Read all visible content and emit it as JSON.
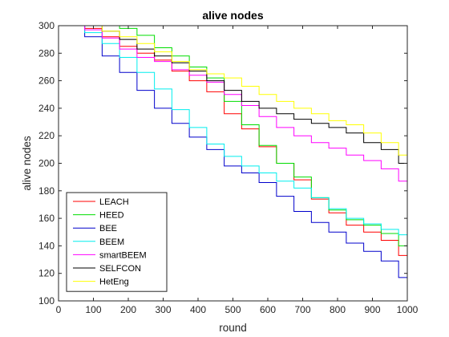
{
  "chart_data": {
    "type": "line",
    "title": "alive nodes",
    "xlabel": "round",
    "ylabel": "alive nodes",
    "xlim": [
      0,
      1000
    ],
    "ylim": [
      100,
      300
    ],
    "xticks": [
      0,
      100,
      200,
      300,
      400,
      500,
      600,
      700,
      800,
      900,
      1000
    ],
    "yticks": [
      100,
      120,
      140,
      160,
      180,
      200,
      220,
      240,
      260,
      280,
      300
    ],
    "grid": false,
    "legend_position": "bottom-left",
    "x": [
      0,
      50,
      100,
      150,
      200,
      250,
      300,
      350,
      400,
      450,
      500,
      550,
      600,
      650,
      700,
      750,
      800,
      850,
      900,
      950,
      1000
    ],
    "series": [
      {
        "name": "LEACH",
        "color": "#ff0000",
        "values": [
          300,
          300,
          298,
          292,
          285,
          280,
          275,
          267,
          260,
          252,
          236,
          225,
          212,
          200,
          188,
          174,
          164,
          155,
          150,
          144,
          133
        ]
      },
      {
        "name": "HEED",
        "color": "#00dd00",
        "values": [
          300,
          300,
          300,
          300,
          298,
          293,
          284,
          278,
          270,
          262,
          245,
          228,
          213,
          200,
          190,
          175,
          166,
          159,
          155,
          149,
          140
        ]
      },
      {
        "name": "BEE",
        "color": "#0000cc",
        "values": [
          300,
          300,
          292,
          278,
          266,
          253,
          240,
          229,
          219,
          210,
          198,
          193,
          186,
          176,
          165,
          157,
          150,
          142,
          136,
          129,
          117
        ]
      },
      {
        "name": "BEEM",
        "color": "#00eeee",
        "values": [
          300,
          300,
          295,
          287,
          277,
          266,
          254,
          239,
          226,
          214,
          205,
          198,
          193,
          187,
          182,
          175,
          167,
          160,
          156,
          152,
          148
        ]
      },
      {
        "name": "smartBEEM",
        "color": "#ff00ff",
        "values": [
          300,
          300,
          297,
          291,
          283,
          277,
          274,
          268,
          264,
          259,
          250,
          242,
          234,
          226,
          220,
          215,
          211,
          206,
          202,
          196,
          187
        ]
      },
      {
        "name": "SELFCON",
        "color": "#000000",
        "values": [
          300,
          300,
          300,
          296,
          290,
          283,
          278,
          273,
          267,
          260,
          253,
          245,
          240,
          236,
          232,
          229,
          226,
          222,
          215,
          210,
          200
        ]
      },
      {
        "name": "HetEng",
        "color": "#ffff00",
        "values": [
          300,
          300,
          300,
          296,
          292,
          287,
          281,
          274,
          268,
          265,
          262,
          256,
          250,
          245,
          240,
          236,
          231,
          228,
          222,
          215,
          206
        ]
      }
    ]
  }
}
